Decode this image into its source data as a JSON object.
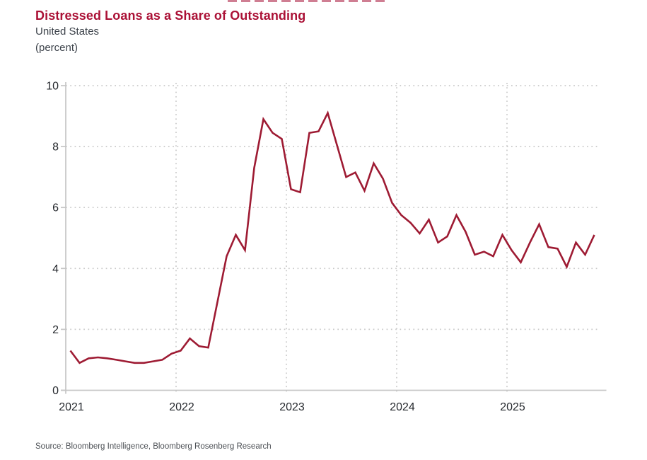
{
  "header": {
    "title": "Distressed Loans as a Share of Outstanding",
    "subtitle": "United States",
    "unit_label": "(percent)"
  },
  "footer": {
    "source": "Source: Bloomberg Intelligence, Bloomberg Rosenberg Research"
  },
  "colors": {
    "line": "#9e1b33",
    "title": "#ab1136",
    "grid": "#c9c9c9",
    "axis": "#c6c6c6",
    "tick_label": "#26292e"
  },
  "chart_data": {
    "type": "line",
    "title": "Distressed Loans as a Share of Outstanding",
    "subtitle": "United States",
    "unit": "percent",
    "frequency": "monthly",
    "x_start": "2021-01",
    "x_end": "2025-10",
    "x_tick_labels": [
      "2021",
      "2022",
      "2023",
      "2024",
      "2025"
    ],
    "y_tick_values": [
      0,
      2,
      4,
      6,
      8,
      10
    ],
    "ylim": [
      0,
      10
    ],
    "grid": "dotted",
    "legend_position": "none",
    "series": [
      {
        "name": "Distressed loans as a share of outstanding (%)",
        "values": [
          1.3,
          0.9,
          1.05,
          1.08,
          1.05,
          1.0,
          0.95,
          0.9,
          0.9,
          0.95,
          1.0,
          1.2,
          1.3,
          1.7,
          1.45,
          1.4,
          2.9,
          4.4,
          5.1,
          4.6,
          7.3,
          8.9,
          8.45,
          8.25,
          6.6,
          6.5,
          8.45,
          8.5,
          9.1,
          8.05,
          7.0,
          7.15,
          6.55,
          7.45,
          6.95,
          6.15,
          5.75,
          5.5,
          5.15,
          5.6,
          4.85,
          5.05,
          5.75,
          5.2,
          4.45,
          4.55,
          4.4,
          5.1,
          4.6,
          4.2,
          4.85,
          5.45,
          4.7,
          4.65,
          4.05,
          4.85,
          4.45,
          5.1
        ]
      }
    ]
  }
}
